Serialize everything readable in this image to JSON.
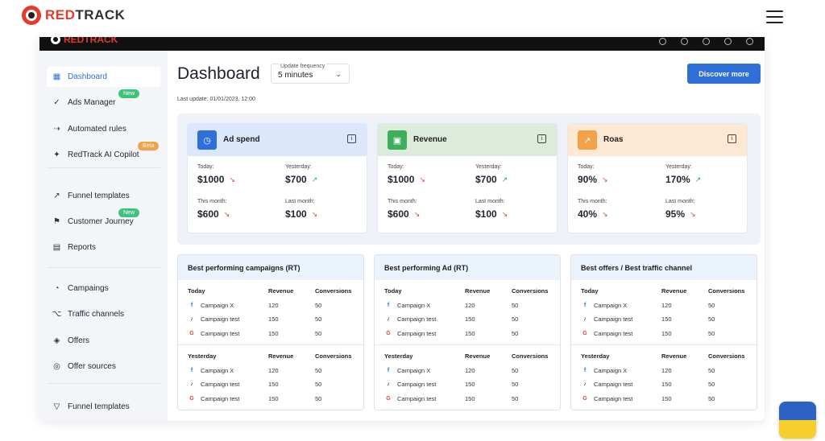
{
  "site": {
    "logo_red": "RED",
    "logo_dark": "TRACK"
  },
  "app": {
    "logo_text": "REDTRACK"
  },
  "sidebar": {
    "items": [
      {
        "label": "Dashboard",
        "icon": "grid-icon",
        "active": true
      },
      {
        "label": "Ads Manager",
        "icon": "check-circle-icon",
        "badge": "New"
      },
      {
        "label": "Automated rules",
        "icon": "rule-icon"
      },
      {
        "label": "RedTrack AI Copilot",
        "icon": "ai-spark-icon",
        "badge": "Beta"
      },
      {
        "label": "Funnel templates",
        "icon": "funnel-chart-icon"
      },
      {
        "label": "Customer Journey",
        "icon": "journey-icon",
        "badge": "New"
      },
      {
        "label": "Reports",
        "icon": "reports-icon"
      },
      {
        "label": "Campaings",
        "icon": "campaigns-icon"
      },
      {
        "label": "Traffic channels",
        "icon": "share-icon"
      },
      {
        "label": "Offers",
        "icon": "offer-tag-icon"
      },
      {
        "label": "Offer sources",
        "icon": "globe-icon"
      },
      {
        "label": "Funnel templates",
        "icon": "funnel-icon"
      }
    ]
  },
  "header": {
    "title": "Dashboard",
    "frequency_label": "Update frequency",
    "frequency_value": "5 minutes",
    "last_update": "Last update: 01/01/2023, 12:00",
    "discover_label": "Discover more"
  },
  "kpis": [
    {
      "name": "Ad spend",
      "color": "#dbe7fb",
      "icon_bg": "#2f6fd8",
      "icon": "gauge-icon",
      "today_label": "Today:",
      "today": "$1000",
      "today_trend": "down",
      "yesterday_label": "Yesterday:",
      "yesterday": "$700",
      "yesterday_trend": "up",
      "month_label": "This month:",
      "month": "$600",
      "month_trend": "down",
      "last_month_label": "Last month:",
      "last_month": "$100",
      "last_month_trend": "down"
    },
    {
      "name": "Revenue",
      "color": "#dcebdc",
      "icon_bg": "#3fae5a",
      "icon": "wallet-icon",
      "today_label": "Today:",
      "today": "$1000",
      "today_trend": "down",
      "yesterday_label": "Yesterday:",
      "yesterday": "$700",
      "yesterday_trend": "up",
      "month_label": "This month:",
      "month": "$600",
      "month_trend": "down",
      "last_month_label": "Last month:",
      "last_month": "$100",
      "last_month_trend": "down"
    },
    {
      "name": "Roas",
      "color": "#fde8d3",
      "icon_bg": "#f3a24a",
      "icon": "trend-chart-icon",
      "today_label": "Today:",
      "today": "90%",
      "today_trend": "down",
      "yesterday_label": "Yesterday:",
      "yesterday": "170%",
      "yesterday_trend": "up",
      "month_label": "This month:",
      "month": "40%",
      "month_trend": "down",
      "last_month_label": "Last month:",
      "last_month": "95%",
      "last_month_trend": "down"
    }
  ],
  "tables": [
    {
      "title": "Best performing campaigns (RT)"
    },
    {
      "title": "Best performing Ad (RT)"
    },
    {
      "title": "Best offers / Best traffic channel"
    }
  ],
  "table_sections": [
    {
      "period": "Today",
      "revenue_header": "Revenue",
      "conversions_header": "Conversions",
      "rows": [
        {
          "source": "facebook-icon",
          "name": "Campaign X",
          "revenue": "120",
          "conversions": "50"
        },
        {
          "source": "tiktok-icon",
          "name": "Campaign test",
          "revenue": "150",
          "conversions": "50"
        },
        {
          "source": "google-icon",
          "name": "Campaign test",
          "revenue": "150",
          "conversions": "50"
        }
      ]
    },
    {
      "period": "Yesterday",
      "revenue_header": "Revenue",
      "conversions_header": "Conversions",
      "rows": [
        {
          "source": "facebook-icon",
          "name": "Campaign X",
          "revenue": "120",
          "conversions": "50"
        },
        {
          "source": "tiktok-icon",
          "name": "Campaign test",
          "revenue": "150",
          "conversions": "50"
        },
        {
          "source": "google-icon",
          "name": "Campaign test",
          "revenue": "150",
          "conversions": "50"
        }
      ]
    }
  ]
}
